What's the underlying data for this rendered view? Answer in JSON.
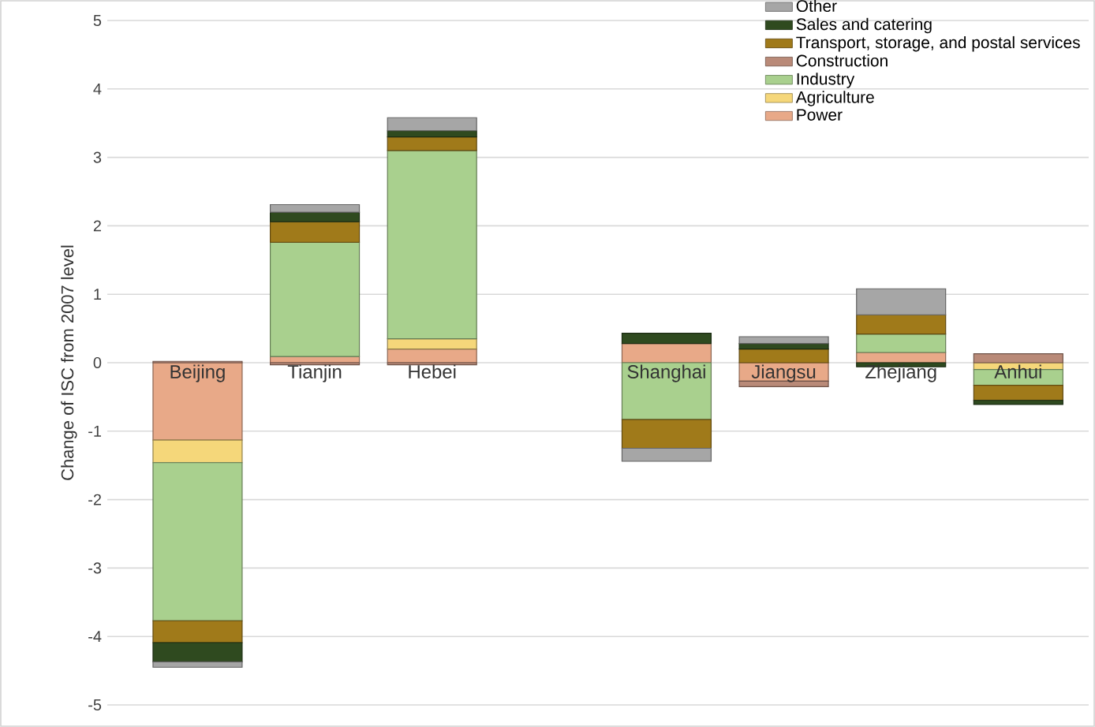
{
  "chart_data": {
    "type": "bar",
    "stacked": true,
    "ylabel": "Change of ISC from 2007 level",
    "categories": [
      "Beijing",
      "Tianjin",
      "Hebei",
      null,
      "Shanghai",
      "Jiangsu",
      "Zhejiang",
      "Anhui"
    ],
    "ylim": [
      -5,
      5
    ],
    "yticks": [
      -5,
      -4,
      -3,
      -2,
      -1,
      0,
      1,
      2,
      3,
      4,
      5
    ],
    "grid": "y",
    "legend": "top right",
    "series": [
      {
        "name": "Power",
        "color": "#e8a988",
        "values": [
          -1.13,
          0.09,
          0.2,
          null,
          0.28,
          -0.27,
          0.15,
          null
        ]
      },
      {
        "name": "Agriculture",
        "color": "#f5d77a",
        "values": [
          -0.33,
          null,
          0.15,
          null,
          null,
          null,
          null,
          -0.1
        ]
      },
      {
        "name": "Industry",
        "color": "#a9d08e",
        "values": [
          -2.31,
          1.67,
          2.75,
          null,
          -0.83,
          null,
          0.27,
          -0.23
        ]
      },
      {
        "name": "Construction",
        "color": "#b98a78",
        "values": [
          0.02,
          -0.03,
          -0.03,
          null,
          null,
          -0.08,
          null,
          0.13
        ]
      },
      {
        "name": "Transport, storage, and postal services",
        "color": "#a07a1a",
        "values": [
          -0.32,
          0.3,
          0.2,
          null,
          -0.42,
          0.2,
          0.28,
          -0.22
        ]
      },
      {
        "name": "Sales and catering",
        "color": "#2f4a1f",
        "values": [
          -0.28,
          0.14,
          0.09,
          null,
          0.15,
          0.08,
          -0.06,
          -0.06
        ]
      },
      {
        "name": "Other",
        "color": "#a6a6a6",
        "values": [
          -0.08,
          0.11,
          0.19,
          null,
          -0.19,
          0.1,
          0.38,
          null
        ]
      }
    ]
  }
}
